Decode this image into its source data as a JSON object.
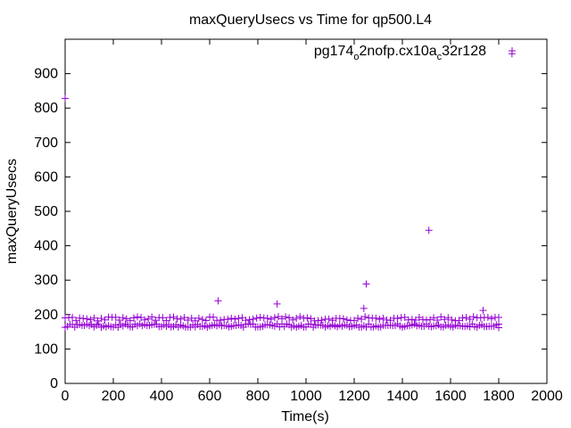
{
  "chart_data": {
    "type": "scatter",
    "title": "maxQueryUsecs vs Time for qp500.L4",
    "xlabel": "Time(s)",
    "ylabel": "maxQueryUsecs",
    "xlim": [
      0,
      2000
    ],
    "ylim": [
      0,
      1000
    ],
    "xticks": [
      0,
      200,
      400,
      600,
      800,
      1000,
      1200,
      1400,
      1600,
      1800,
      2000
    ],
    "yticks": [
      0,
      100,
      200,
      300,
      400,
      500,
      600,
      700,
      800,
      900
    ],
    "grid": false,
    "legend": {
      "placement": "top-right",
      "label_main": "pg174",
      "label_sub1": "o",
      "label_mid": "2nofp.cx10a",
      "label_sub2": "c",
      "label_end": "32r128"
    },
    "marker": "plus",
    "color": "#9400d3",
    "series": [
      {
        "band_low": {
          "x_start": 0,
          "x_end": 1800,
          "x_step": 10,
          "y_center": 168,
          "y_jitter": 5
        },
        "band_high": {
          "x_start": 0,
          "x_end": 1800,
          "x_step": 15,
          "y_center": 188,
          "y_jitter": 6
        },
        "points": [
          {
            "x": 0,
            "y": 828
          },
          {
            "x": 1855,
            "y": 958
          },
          {
            "x": 635,
            "y": 240
          },
          {
            "x": 880,
            "y": 231
          },
          {
            "x": 1250,
            "y": 289
          },
          {
            "x": 1240,
            "y": 218
          },
          {
            "x": 1510,
            "y": 445
          },
          {
            "x": 1735,
            "y": 212
          },
          {
            "x": 1800,
            "y": 162
          }
        ]
      }
    ]
  }
}
